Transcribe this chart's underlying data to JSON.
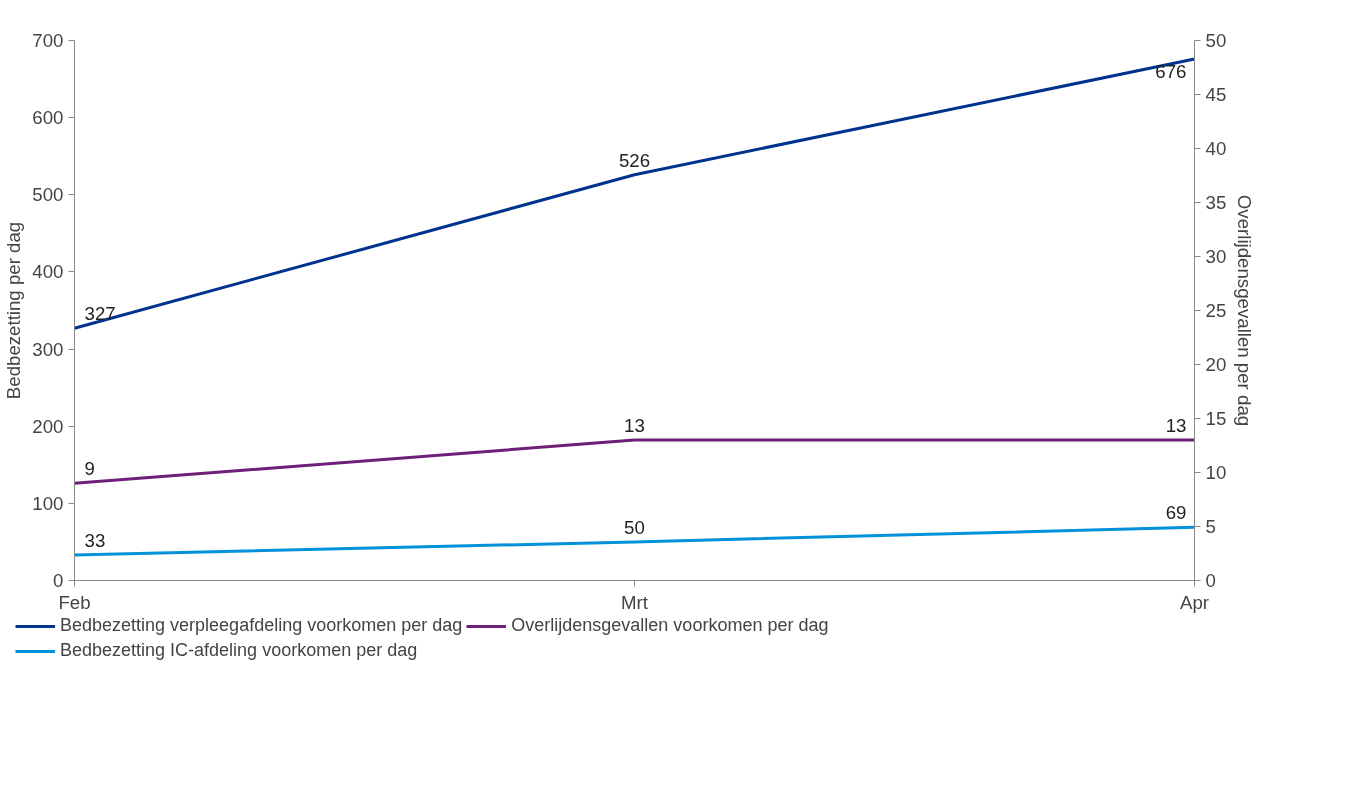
{
  "chart_data": {
    "type": "line",
    "categories": [
      "Feb",
      "Mrt",
      "Apr"
    ],
    "series": [
      {
        "name": "Bedbezetting verpleegafdeling voorkomen per dag",
        "color": "#00338d",
        "values": [
          327,
          526,
          676
        ]
      },
      {
        "name": "Overlijdensgevallen voorkomen per dag",
        "color": "#6d2077",
        "values": [
          9,
          13,
          13
        ],
        "axis": "y2"
      },
      {
        "name": "Bedbezetting IC-afdeling voorkomen per dag",
        "color": "#0091da",
        "values": [
          33,
          50,
          69
        ]
      }
    ],
    "ylabel": "Bedbezetting per dag",
    "y2label": "Overlijdensgevallen per dag",
    "ylim": [
      0,
      700
    ],
    "yticks": [
      0,
      100,
      200,
      300,
      400,
      500,
      600,
      700
    ],
    "y2lim": [
      0,
      50
    ],
    "y2ticks": [
      0,
      5,
      10,
      15,
      20,
      25,
      30,
      35,
      40,
      45,
      50
    ],
    "data_labels": true,
    "grid": false,
    "legend": "bottom",
    "marker": "none",
    "line_style": "solid"
  }
}
